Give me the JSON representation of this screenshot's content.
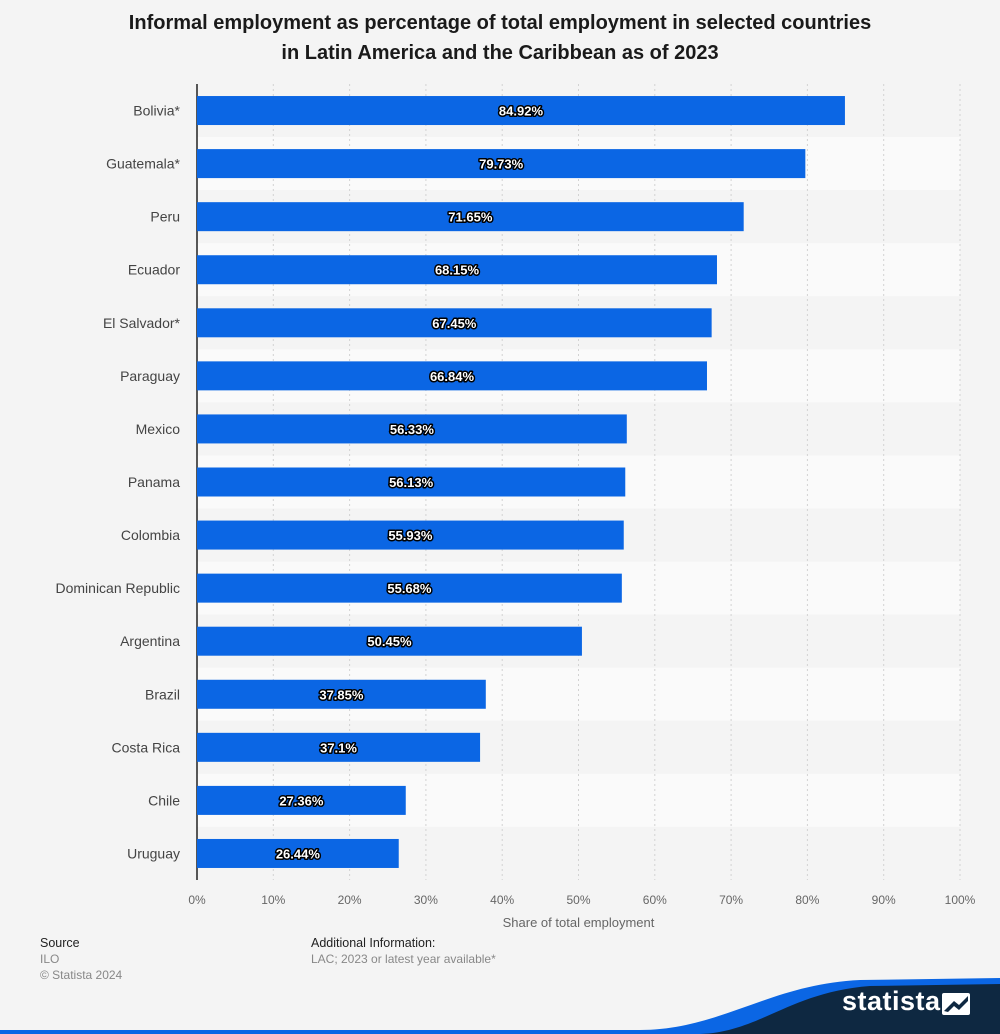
{
  "title_lines": [
    "Informal employment as percentage of total employment in selected countries",
    "in Latin America and the Caribbean as of 2023"
  ],
  "chart_data": {
    "type": "bar",
    "orientation": "horizontal",
    "title": "Informal employment as percentage of total employment in selected countries in Latin America and the Caribbean as of 2023",
    "categories": [
      "Bolivia*",
      "Guatemala*",
      "Peru",
      "Ecuador",
      "El Salvador*",
      "Paraguay",
      "Mexico",
      "Panama",
      "Colombia",
      "Dominican Republic",
      "Argentina",
      "Brazil",
      "Costa Rica",
      "Chile",
      "Uruguay"
    ],
    "values": [
      84.92,
      79.73,
      71.65,
      68.15,
      67.45,
      66.84,
      56.33,
      56.13,
      55.93,
      55.68,
      50.45,
      37.85,
      37.1,
      27.36,
      26.44
    ],
    "data_labels": [
      "84.92%",
      "79.73%",
      "71.65%",
      "68.15%",
      "67.45%",
      "66.84%",
      "56.33%",
      "56.13%",
      "55.93%",
      "55.68%",
      "50.45%",
      "37.85%",
      "37.1%",
      "27.36%",
      "26.44%"
    ],
    "xlabel": "Share of total employment",
    "ylabel": "",
    "xlim": [
      0,
      100
    ],
    "ticks": [
      0,
      10,
      20,
      30,
      40,
      50,
      60,
      70,
      80,
      90,
      100
    ],
    "tick_labels": [
      "0%",
      "10%",
      "20%",
      "30%",
      "40%",
      "50%",
      "60%",
      "70%",
      "80%",
      "90%",
      "100%"
    ],
    "grid": true,
    "bar_color": "#0b66e4"
  },
  "source": {
    "heading": "Source",
    "lines": [
      "ILO",
      "© Statista 2024"
    ]
  },
  "additional_info": {
    "heading": "Additional Information:",
    "text": "LAC; 2023 or latest year available*"
  },
  "brand": {
    "name": "statista",
    "color": "#0e2841",
    "accent": "#0b66e4"
  }
}
